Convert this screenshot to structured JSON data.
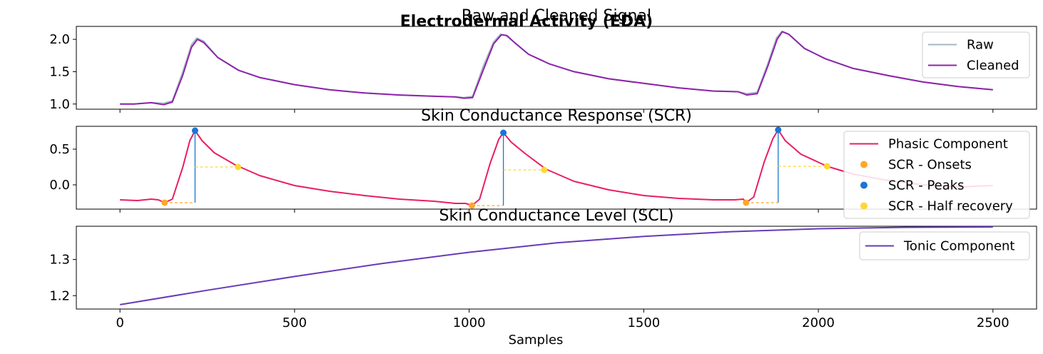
{
  "figure": {
    "suptitle": "Electrodermal Activity (EDA)",
    "xlabel": "Samples"
  },
  "chart_data": [
    {
      "type": "line",
      "title": "Raw and Cleaned Signal",
      "xlim": [
        -125,
        2625
      ],
      "ylim": [
        0.92,
        2.2
      ],
      "x_ticks": [
        0,
        500,
        1000,
        1500,
        2000,
        2500
      ],
      "y_ticks": [
        1.0,
        1.5,
        2.0
      ],
      "y_tick_labels": [
        "1.0",
        "1.5",
        "2.0"
      ],
      "legend_position": "upper right",
      "series": [
        {
          "name": "Raw",
          "color": "#a5b7c6",
          "width": 2,
          "x": [
            0,
            40,
            90,
            125,
            150,
            180,
            205,
            220,
            240,
            280,
            340,
            400,
            500,
            600,
            700,
            800,
            900,
            960,
            985,
            1010,
            1040,
            1070,
            1090,
            1105,
            1130,
            1170,
            1230,
            1300,
            1400,
            1500,
            1600,
            1700,
            1770,
            1795,
            1825,
            1855,
            1880,
            1895,
            1915,
            1960,
            2020,
            2100,
            2200,
            2300,
            2400,
            2500
          ],
          "y": [
            1.0,
            1.0,
            1.02,
            1.01,
            1.05,
            1.5,
            1.92,
            2.02,
            1.97,
            1.72,
            1.52,
            1.41,
            1.3,
            1.22,
            1.17,
            1.14,
            1.12,
            1.11,
            1.1,
            1.12,
            1.58,
            1.96,
            2.08,
            2.06,
            1.95,
            1.77,
            1.62,
            1.5,
            1.39,
            1.32,
            1.25,
            1.2,
            1.19,
            1.16,
            1.18,
            1.62,
            2.02,
            2.12,
            2.08,
            1.86,
            1.7,
            1.55,
            1.44,
            1.34,
            1.27,
            1.22
          ]
        },
        {
          "name": "Cleaned",
          "color": "#8e24aa",
          "width": 2,
          "x": [
            0,
            40,
            90,
            125,
            150,
            180,
            205,
            222,
            240,
            280,
            340,
            400,
            500,
            600,
            700,
            800,
            900,
            960,
            985,
            1010,
            1040,
            1070,
            1092,
            1108,
            1130,
            1170,
            1230,
            1300,
            1400,
            1500,
            1600,
            1700,
            1770,
            1795,
            1825,
            1855,
            1882,
            1897,
            1915,
            1960,
            2020,
            2100,
            2200,
            2300,
            2400,
            2500
          ],
          "y": [
            1.0,
            1.0,
            1.02,
            0.99,
            1.03,
            1.45,
            1.88,
            2.0,
            1.95,
            1.72,
            1.52,
            1.41,
            1.3,
            1.22,
            1.17,
            1.14,
            1.12,
            1.11,
            1.09,
            1.1,
            1.52,
            1.93,
            2.07,
            2.06,
            1.95,
            1.77,
            1.62,
            1.5,
            1.39,
            1.32,
            1.25,
            1.2,
            1.19,
            1.14,
            1.16,
            1.58,
            2.0,
            2.12,
            2.08,
            1.86,
            1.7,
            1.55,
            1.44,
            1.34,
            1.27,
            1.22
          ]
        }
      ]
    },
    {
      "type": "line",
      "title": "Skin Conductance Response (SCR)",
      "xlim": [
        -125,
        2625
      ],
      "ylim": [
        -0.34,
        0.82
      ],
      "x_ticks": [
        0,
        500,
        1000,
        1500,
        2000,
        2500
      ],
      "y_ticks": [
        0.0,
        0.5
      ],
      "y_tick_labels": [
        "0.0",
        "0.5"
      ],
      "legend_position": "upper right",
      "series": [
        {
          "name": "Phasic Component",
          "color": "#e91e63",
          "width": 2,
          "x": [
            0,
            50,
            90,
            110,
            128,
            150,
            180,
            200,
            215,
            235,
            270,
            330,
            400,
            500,
            600,
            700,
            800,
            900,
            960,
            990,
            1008,
            1030,
            1060,
            1085,
            1098,
            1120,
            1160,
            1220,
            1300,
            1400,
            1500,
            1600,
            1700,
            1760,
            1785,
            1793,
            1815,
            1845,
            1870,
            1885,
            1905,
            1950,
            2025,
            2100,
            2200,
            2300,
            2400,
            2500
          ],
          "y": [
            -0.21,
            -0.22,
            -0.2,
            -0.21,
            -0.25,
            -0.2,
            0.25,
            0.62,
            0.76,
            0.62,
            0.45,
            0.28,
            0.13,
            -0.01,
            -0.09,
            -0.15,
            -0.2,
            -0.23,
            -0.26,
            -0.26,
            -0.29,
            -0.2,
            0.3,
            0.64,
            0.73,
            0.6,
            0.44,
            0.22,
            0.05,
            -0.07,
            -0.15,
            -0.19,
            -0.21,
            -0.21,
            -0.2,
            -0.25,
            -0.17,
            0.32,
            0.65,
            0.77,
            0.62,
            0.43,
            0.26,
            0.15,
            0.06,
            0.0,
            -0.03,
            -0.01
          ]
        }
      ],
      "scr": {
        "onset_color": "#ffa726",
        "peak_color": "#1976d2",
        "half_recovery_color": "#fdd835",
        "onsets": [
          {
            "x": 128,
            "y": -0.25
          },
          {
            "x": 1008,
            "y": -0.29
          },
          {
            "x": 1793,
            "y": -0.25
          }
        ],
        "peaks": [
          {
            "x": 215,
            "y": 0.76
          },
          {
            "x": 1098,
            "y": 0.73
          },
          {
            "x": 1885,
            "y": 0.77
          }
        ],
        "half_recovery": [
          {
            "x": 338,
            "y": 0.25
          },
          {
            "x": 1215,
            "y": 0.21
          },
          {
            "x": 2025,
            "y": 0.26
          }
        ],
        "legend": [
          "SCR - Onsets",
          "SCR - Peaks",
          "SCR - Half recovery"
        ]
      }
    },
    {
      "type": "line",
      "title": "Skin Conductance Level (SCL)",
      "xlim": [
        -125,
        2625
      ],
      "ylim": [
        1.163,
        1.392
      ],
      "x_ticks": [
        0,
        500,
        1000,
        1500,
        2000,
        2500
      ],
      "x_tick_labels": [
        "0",
        "500",
        "1000",
        "1500",
        "2000",
        "2500"
      ],
      "y_ticks": [
        1.2,
        1.3
      ],
      "y_tick_labels": [
        "1.2",
        "1.3"
      ],
      "legend_position": "upper right",
      "series": [
        {
          "name": "Tonic Component",
          "color": "#673ab7",
          "width": 2,
          "x": [
            0,
            250,
            500,
            750,
            1000,
            1250,
            1500,
            1750,
            2000,
            2250,
            2500
          ],
          "y": [
            1.175,
            1.215,
            1.253,
            1.289,
            1.32,
            1.346,
            1.364,
            1.377,
            1.385,
            1.389,
            1.39
          ]
        }
      ]
    }
  ]
}
